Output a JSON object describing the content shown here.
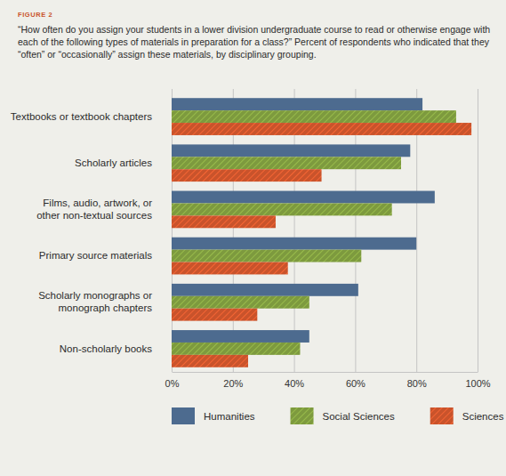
{
  "chart_data": {
    "type": "bar",
    "orientation": "horizontal",
    "annotations": [
      "FIGURE 2"
    ],
    "title": "“How often do you assign your students in a lower division undergraduate course to read or otherwise engage with\neach of the following types of materials in preparation for a class?” Percent of respondents who indicated that they\n“often” or “occasionally” assign these materials, by disciplinary grouping.",
    "categories": [
      "Textbooks or textbook chapters",
      "Scholarly articles",
      "Films, audio, artwork, or\nother non-textual sources",
      "Primary source materials",
      "Scholarly monographs or\nmonograph chapters",
      "Non-scholarly books"
    ],
    "series": [
      {
        "name": "Humanities",
        "color": "#4d6b8f",
        "values": [
          82,
          78,
          86,
          80,
          61,
          45
        ]
      },
      {
        "name": "Social Sciences",
        "color": "#7d9a3e",
        "values": [
          93,
          75,
          72,
          62,
          45,
          42
        ]
      },
      {
        "name": "Sciences",
        "color": "#c9532b",
        "values": [
          98,
          49,
          34,
          38,
          28,
          25
        ]
      }
    ],
    "xlim": [
      0,
      100
    ],
    "xticks": [
      {
        "value": 0,
        "label": "0%"
      },
      {
        "value": 20,
        "label": "20%"
      },
      {
        "value": 40,
        "label": "40%"
      },
      {
        "value": 60,
        "label": "60%"
      },
      {
        "value": 80,
        "label": "80%"
      },
      {
        "value": 100,
        "label": "100%"
      }
    ],
    "grid": true,
    "legend": "bottom"
  }
}
